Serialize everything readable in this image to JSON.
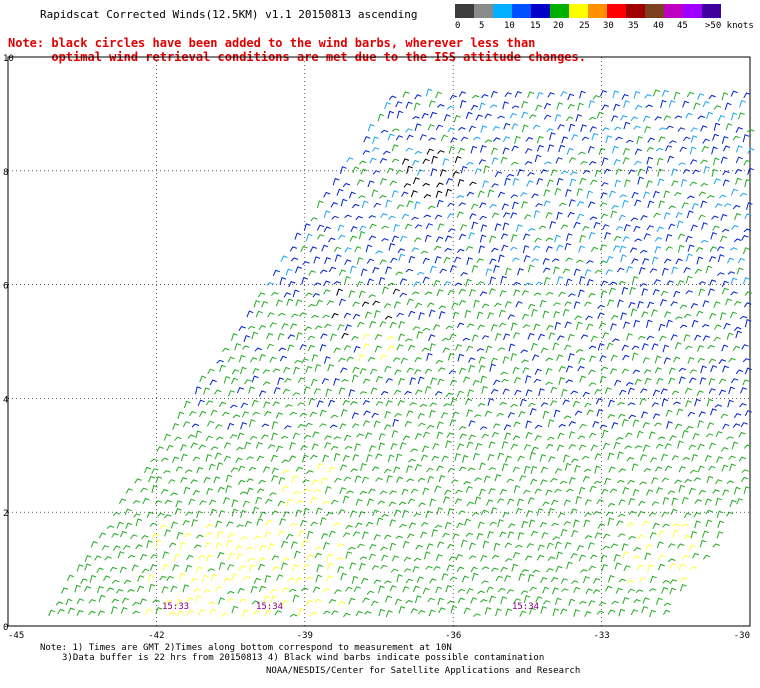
{
  "title": "Rapidscat Corrected Winds(12.5KM) v1.1 20150813 ascending",
  "note_lines": [
    "Note: black circles have been added to the wind barbs, wherever less than",
    "      optimal wind retrieval conditions are met due to the ISS attitude changes."
  ],
  "scale": {
    "labels": [
      "0",
      "5",
      "10",
      "15",
      "20",
      "25",
      "30",
      "35",
      "40",
      "45",
      ">50 knots"
    ],
    "colors": [
      "#3c3c3c",
      "#8a8a8a",
      "#00b0ff",
      "#0050ff",
      "#0000c8",
      "#00b000",
      "#ffff00",
      "#ff9000",
      "#ff0000",
      "#a00000",
      "#7a4020",
      "#c000c0",
      "#a000ff",
      "#4000a0"
    ]
  },
  "y_ticks": [
    "10",
    "8",
    "6",
    "4",
    "2",
    "0"
  ],
  "x_ticks": [
    "-45",
    "-42",
    "-39",
    "-36",
    "-33",
    "-30"
  ],
  "times": [
    "15:33",
    "15:34",
    "15:34"
  ],
  "footer": {
    "line1": "Note: 1) Times are GMT 2)Times along bottom correspond to measurement at 10N",
    "line2": "3)Data buffer is 22 hrs from 20150813 4) Black wind barbs indicate possible contamination",
    "credit": "NOAA/NESDIS/Center for Satellite Applications and Research"
  },
  "colors": {
    "green": "#22aa22",
    "blue": "#0022cc",
    "cyan": "#1aa4ee",
    "yellow": "#ffff33",
    "black": "#000000",
    "purple": "#800080",
    "note_red": "#e00000"
  }
}
